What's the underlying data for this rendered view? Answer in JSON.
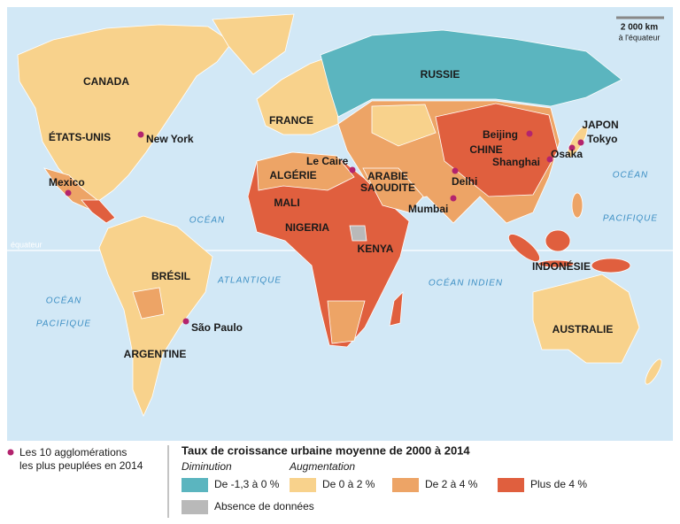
{
  "scale": {
    "distance": "2 000 km",
    "note": "à l'équateur"
  },
  "oceans": {
    "atlantic": "ATLANTIQUE",
    "indian": "OCÉAN INDIEN",
    "pacific_left": [
      "OCÉAN",
      "PACIFIQUE"
    ],
    "pacific_right": [
      "OCÉAN",
      "PACIFIQUE"
    ],
    "equator": "équateur"
  },
  "countries": {
    "canada": "CANADA",
    "usa": "ÉTATS-UNIS",
    "brazil": "BRÉSIL",
    "argentina": "ARGENTINE",
    "france": "FRANCE",
    "russia": "RUSSIE",
    "algeria": "ALGÉRIE",
    "mali": "MALI",
    "nigeria": "NIGERIA",
    "kenya": "KENYA",
    "saudi": [
      "ARABIE",
      "SAOUDITE"
    ],
    "china": "CHINE",
    "japan": "JAPON",
    "indonesia": "INDONÉSIE",
    "australia": "AUSTRALIE"
  },
  "cities": {
    "new_york": "New York",
    "mexico": "Mexico",
    "sao_paulo": "São Paulo",
    "cairo": "Le Caire",
    "mumbai": "Mumbai",
    "delhi": "Delhi",
    "beijing": "Beijing",
    "shanghai": "Shanghai",
    "tokyo": "Tokyo",
    "osaka": "Osaka"
  },
  "legend": {
    "cities_note": [
      "Les 10 agglomérations",
      "les plus peuplées en 2014"
    ],
    "title": "Taux de croissance urbaine moyenne de 2000 à 2014",
    "decrease": "Diminution",
    "increase": "Augmentation",
    "items": [
      {
        "label": "De -1,3 à 0 %",
        "color": "#5bb5bf"
      },
      {
        "label": "De 0 à 2 %",
        "color": "#f8d28c"
      },
      {
        "label": "De 2 à 4 %",
        "color": "#eda466"
      },
      {
        "label": "Plus de 4 %",
        "color": "#e05f3e"
      },
      {
        "label": "Absence de données",
        "color": "#b9b9b9"
      }
    ]
  }
}
